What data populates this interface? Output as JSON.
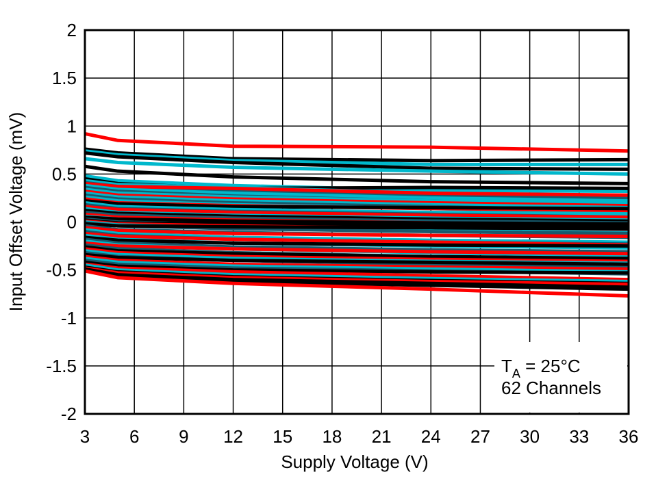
{
  "chart_data": {
    "type": "line",
    "title": "",
    "xlabel": "Supply Voltage (V)",
    "ylabel": "Input Offset Voltage (mV)",
    "xlim": [
      3,
      36
    ],
    "ylim": [
      -2,
      2
    ],
    "xticks": [
      3,
      6,
      9,
      12,
      15,
      18,
      21,
      24,
      27,
      30,
      33,
      36
    ],
    "yticks": [
      -2,
      -1.5,
      -1,
      -0.5,
      0,
      0.5,
      1,
      1.5,
      2
    ],
    "ytick_labels": [
      "-2",
      "-1.5",
      "-1",
      "-0.5",
      "0",
      "0.5",
      "1",
      "1.5",
      "2"
    ],
    "grid": true,
    "annotation": {
      "t_symbol": "T",
      "t_sub": "A",
      "t_rest": " = 25°C",
      "line2": "62 Channels"
    },
    "palette": {
      "red": "#ff0000",
      "black": "#000000",
      "cyan": "#00b8cc",
      "teal": "#175a6c"
    },
    "x": [
      3,
      5,
      12,
      24,
      36
    ],
    "series": [
      {
        "color": "red",
        "values": [
          0.92,
          0.85,
          0.79,
          0.78,
          0.74
        ]
      },
      {
        "color": "black",
        "values": [
          0.76,
          0.72,
          0.66,
          0.64,
          0.65
        ]
      },
      {
        "color": "cyan",
        "values": [
          0.74,
          0.7,
          0.64,
          0.6,
          0.6
        ]
      },
      {
        "color": "black",
        "values": [
          0.72,
          0.68,
          0.62,
          0.56,
          0.55
        ]
      },
      {
        "color": "cyan",
        "values": [
          0.66,
          0.62,
          0.57,
          0.53,
          0.5
        ]
      },
      {
        "color": "black",
        "values": [
          0.58,
          0.53,
          0.47,
          0.42,
          0.4
        ]
      },
      {
        "color": "cyan",
        "values": [
          0.48,
          0.43,
          0.38,
          0.33,
          0.32
        ]
      },
      {
        "color": "black",
        "values": [
          0.45,
          0.4,
          0.35,
          0.36,
          0.35
        ]
      },
      {
        "color": "cyan",
        "values": [
          0.43,
          0.39,
          0.36,
          0.3,
          0.27
        ]
      },
      {
        "color": "teal",
        "values": [
          0.41,
          0.37,
          0.33,
          0.28,
          0.25
        ]
      },
      {
        "color": "red",
        "values": [
          0.4,
          0.37,
          0.35,
          0.3,
          0.28
        ]
      },
      {
        "color": "cyan",
        "values": [
          0.38,
          0.34,
          0.3,
          0.25,
          0.22
        ]
      },
      {
        "color": "teal",
        "values": [
          0.36,
          0.32,
          0.27,
          0.22,
          0.18
        ]
      },
      {
        "color": "cyan",
        "values": [
          0.34,
          0.3,
          0.26,
          0.22,
          0.2
        ]
      },
      {
        "color": "red",
        "values": [
          0.32,
          0.28,
          0.24,
          0.2,
          0.17
        ]
      },
      {
        "color": "cyan",
        "values": [
          0.3,
          0.26,
          0.22,
          0.18,
          0.15
        ]
      },
      {
        "color": "teal",
        "values": [
          0.28,
          0.24,
          0.2,
          0.16,
          0.12
        ]
      },
      {
        "color": "cyan",
        "values": [
          0.26,
          0.22,
          0.18,
          0.14,
          0.1
        ]
      },
      {
        "color": "red",
        "values": [
          0.24,
          0.2,
          0.17,
          0.14,
          0.12
        ]
      },
      {
        "color": "black",
        "values": [
          0.22,
          0.19,
          0.16,
          0.15,
          0.14
        ]
      },
      {
        "color": "cyan",
        "values": [
          0.2,
          0.16,
          0.13,
          0.1,
          0.08
        ]
      },
      {
        "color": "teal",
        "values": [
          0.18,
          0.14,
          0.11,
          0.08,
          0.05
        ]
      },
      {
        "color": "red",
        "values": [
          0.16,
          0.13,
          0.1,
          0.07,
          0.05
        ]
      },
      {
        "color": "cyan",
        "values": [
          0.14,
          0.1,
          0.07,
          0.04,
          0.02
        ]
      },
      {
        "color": "black",
        "values": [
          0.12,
          0.09,
          0.06,
          0.03,
          0.01
        ]
      },
      {
        "color": "teal",
        "values": [
          0.1,
          0.07,
          0.04,
          0.01,
          -0.01
        ]
      },
      {
        "color": "red",
        "values": [
          0.08,
          0.05,
          0.02,
          -0.01,
          -0.03
        ]
      },
      {
        "color": "cyan",
        "values": [
          0.06,
          0.03,
          0.0,
          -0.03,
          -0.05
        ]
      },
      {
        "color": "black",
        "values": [
          0.05,
          0.03,
          0.01,
          -0.01,
          -0.02
        ]
      },
      {
        "color": "teal",
        "values": [
          0.03,
          0.0,
          -0.03,
          -0.06,
          -0.08
        ]
      },
      {
        "color": "black",
        "values": [
          0.02,
          -0.01,
          -0.02,
          -0.03,
          -0.04
        ]
      },
      {
        "color": "red",
        "values": [
          0.01,
          -0.02,
          -0.04,
          -0.07,
          -0.09
        ]
      },
      {
        "color": "cyan",
        "values": [
          0.0,
          -0.03,
          -0.06,
          -0.09,
          -0.11
        ]
      },
      {
        "color": "teal",
        "values": [
          -0.01,
          -0.04,
          -0.07,
          -0.1,
          -0.12
        ]
      },
      {
        "color": "black",
        "values": [
          -0.02,
          -0.04,
          -0.05,
          -0.06,
          -0.07
        ]
      },
      {
        "color": "teal",
        "values": [
          -0.04,
          -0.08,
          -0.11,
          -0.14,
          -0.16
        ]
      },
      {
        "color": "red",
        "values": [
          -0.06,
          -0.09,
          -0.12,
          -0.14,
          -0.15
        ]
      },
      {
        "color": "cyan",
        "values": [
          -0.08,
          -0.12,
          -0.16,
          -0.19,
          -0.21
        ]
      },
      {
        "color": "teal",
        "values": [
          -0.1,
          -0.14,
          -0.18,
          -0.21,
          -0.23
        ]
      },
      {
        "color": "red",
        "values": [
          -0.12,
          -0.15,
          -0.18,
          -0.21,
          -0.24
        ]
      },
      {
        "color": "cyan",
        "values": [
          -0.14,
          -0.18,
          -0.22,
          -0.25,
          -0.27
        ]
      },
      {
        "color": "black",
        "values": [
          -0.16,
          -0.19,
          -0.22,
          -0.24,
          -0.25
        ]
      },
      {
        "color": "teal",
        "values": [
          -0.18,
          -0.22,
          -0.26,
          -0.29,
          -0.31
        ]
      },
      {
        "color": "cyan",
        "values": [
          -0.2,
          -0.24,
          -0.28,
          -0.32,
          -0.35
        ]
      },
      {
        "color": "red",
        "values": [
          -0.22,
          -0.25,
          -0.28,
          -0.31,
          -0.33
        ]
      },
      {
        "color": "teal",
        "values": [
          -0.24,
          -0.28,
          -0.32,
          -0.36,
          -0.39
        ]
      },
      {
        "color": "black",
        "values": [
          -0.26,
          -0.3,
          -0.33,
          -0.36,
          -0.38
        ]
      },
      {
        "color": "red",
        "values": [
          -0.28,
          -0.32,
          -0.36,
          -0.39,
          -0.41
        ]
      },
      {
        "color": "cyan",
        "values": [
          -0.3,
          -0.34,
          -0.38,
          -0.41,
          -0.43
        ]
      },
      {
        "color": "teal",
        "values": [
          -0.32,
          -0.36,
          -0.4,
          -0.44,
          -0.47
        ]
      },
      {
        "color": "black",
        "values": [
          -0.34,
          -0.37,
          -0.4,
          -0.42,
          -0.44
        ]
      },
      {
        "color": "red",
        "values": [
          -0.36,
          -0.4,
          -0.44,
          -0.47,
          -0.49
        ]
      },
      {
        "color": "cyan",
        "values": [
          -0.38,
          -0.42,
          -0.46,
          -0.49,
          -0.52
        ]
      },
      {
        "color": "teal",
        "values": [
          -0.4,
          -0.44,
          -0.48,
          -0.51,
          -0.54
        ]
      },
      {
        "color": "black",
        "values": [
          -0.42,
          -0.46,
          -0.5,
          -0.52,
          -0.53
        ]
      },
      {
        "color": "red",
        "values": [
          -0.44,
          -0.48,
          -0.52,
          -0.56,
          -0.6
        ]
      },
      {
        "color": "cyan",
        "values": [
          -0.45,
          -0.5,
          -0.55,
          -0.59,
          -0.62
        ]
      },
      {
        "color": "black",
        "values": [
          -0.47,
          -0.52,
          -0.57,
          -0.61,
          -0.64
        ]
      },
      {
        "color": "red",
        "values": [
          -0.48,
          -0.53,
          -0.58,
          -0.62,
          -0.65
        ]
      },
      {
        "color": "black",
        "values": [
          -0.49,
          -0.55,
          -0.6,
          -0.64,
          -0.68
        ]
      },
      {
        "color": "black",
        "values": [
          -0.5,
          -0.56,
          -0.62,
          -0.66,
          -0.7
        ]
      },
      {
        "color": "red",
        "values": [
          -0.51,
          -0.58,
          -0.64,
          -0.7,
          -0.77
        ]
      }
    ]
  }
}
